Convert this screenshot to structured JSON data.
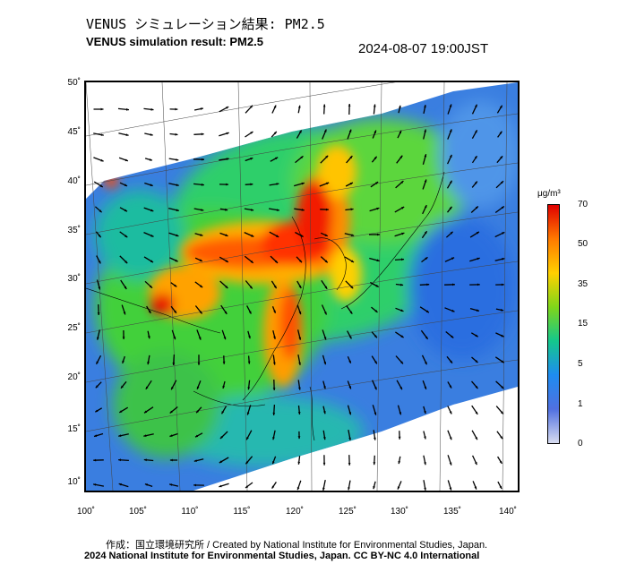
{
  "header": {
    "title_jp": "VENUS シミュレーション結果: PM2.5",
    "title_en": "VENUS simulation result: PM2.5",
    "timestamp": "2024-08-07 19:00JST"
  },
  "map": {
    "latitude_labels": [
      "50˚",
      "45˚",
      "40˚",
      "35˚",
      "30˚",
      "25˚",
      "20˚",
      "15˚",
      "10˚"
    ],
    "longitude_labels": [
      "100˚",
      "105˚",
      "110˚",
      "115˚",
      "120˚",
      "125˚",
      "130˚",
      "135˚",
      "140˚"
    ],
    "field": "PM2.5 concentration with wind vectors"
  },
  "colorbar": {
    "unit": "μg/m³",
    "ticks": [
      "70",
      "50",
      "35",
      "15",
      "5",
      "1",
      "0"
    ],
    "colors": [
      "#e00000",
      "#ff7a00",
      "#ffd000",
      "#7fd61a",
      "#14c88c",
      "#1e8cf0",
      "#5070e0",
      "#d8dcf0"
    ]
  },
  "footer": {
    "credit_line": "作成：国立環境研究所 / Created by National Institute for Environmental Studies, Japan.",
    "license_line": "2024 National Institute for Environmental Studies, Japan. CC BY-NC 4.0 International"
  }
}
